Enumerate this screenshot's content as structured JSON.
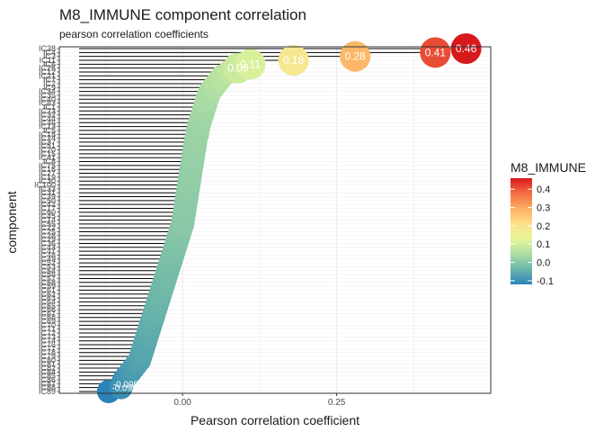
{
  "chart_data": {
    "type": "scatter",
    "title": "M8_IMMUNE component correlation",
    "subtitle": "pearson correlation coefficients",
    "xlabel": "Pearson correlation coefficient",
    "ylabel": "component",
    "xlim": [
      -0.2,
      0.5
    ],
    "x_ticks": [
      0.0,
      0.25
    ],
    "x_tick_labels": [
      "0.00",
      "0.25"
    ],
    "grid": true,
    "legend": {
      "title": "M8_IMMUNE",
      "position": "right",
      "ticks": [
        0.4,
        0.3,
        0.2,
        0.1,
        0.0,
        -0.1
      ],
      "tick_labels": [
        "0.4",
        "0.3",
        "0.2",
        "0.1",
        "0.0",
        "-0.1"
      ],
      "min": -0.12,
      "max": 0.46,
      "colors": [
        "#2b83ba",
        "#6bb5a9",
        "#abdda4",
        "#e6f598",
        "#fee08b",
        "#fdae61",
        "#f46d43",
        "#d7191c"
      ]
    },
    "categories_top_to_bottom": [
      "IC38",
      "IC4",
      "IC3",
      "IC11",
      "IC6",
      "IC26",
      "IC12",
      "IC21",
      "IC7",
      "IC2",
      "IC9",
      "IC34",
      "IC35",
      "IC40",
      "IC83",
      "IC1",
      "IC23",
      "IC32",
      "IC44",
      "IC46",
      "IC13",
      "IC5",
      "IC18",
      "IC24",
      "IC37",
      "IC51",
      "IC20",
      "IC15",
      "IC41",
      "IC8",
      "IC75",
      "IC16",
      "IC27",
      "IC19",
      "IC30",
      "IC100",
      "IC33",
      "IC31",
      "IC39",
      "IC50",
      "IC42",
      "IC17",
      "IC60",
      "IC45",
      "IC14",
      "IC55",
      "IC22",
      "IC25",
      "IC28",
      "IC29",
      "IC36",
      "IC43",
      "IC47",
      "IC48",
      "IC49",
      "IC52",
      "IC53",
      "IC54",
      "IC56",
      "IC57",
      "IC58",
      "IC59",
      "IC61",
      "IC62",
      "IC63",
      "IC64",
      "IC65",
      "IC66",
      "IC67",
      "IC68",
      "IC69",
      "IC70",
      "IC71",
      "IC72",
      "IC73",
      "IC74",
      "IC76",
      "IC77",
      "IC78",
      "IC79",
      "IC80",
      "IC81",
      "IC82",
      "IC84",
      "IC85",
      "IC86",
      "IC87",
      "IC88",
      "IC89"
    ],
    "visible_point_labels": [
      "0.46",
      "0.41",
      "0.28",
      "0.18",
      "0.11",
      "0.09",
      "-0.095",
      "-0.098"
    ],
    "series": [
      {
        "values": [
          0.46,
          0.41,
          0.28,
          0.18,
          0.11,
          0.09,
          0.075,
          0.065,
          0.06,
          0.055,
          0.05,
          0.045,
          0.042,
          0.04,
          0.038,
          0.036,
          0.034,
          0.032,
          0.03,
          0.028,
          0.026,
          0.025,
          0.024,
          0.022,
          0.021,
          0.02,
          0.019,
          0.018,
          0.017,
          0.016,
          0.015,
          0.014,
          0.013,
          0.012,
          0.011,
          0.01,
          0.009,
          0.008,
          0.007,
          0.006,
          0.005,
          0.004,
          0.003,
          0.002,
          0.001,
          0.0,
          -0.002,
          -0.004,
          -0.006,
          -0.008,
          -0.01,
          -0.012,
          -0.014,
          -0.016,
          -0.018,
          -0.02,
          -0.022,
          -0.024,
          -0.026,
          -0.028,
          -0.03,
          -0.032,
          -0.034,
          -0.036,
          -0.038,
          -0.04,
          -0.042,
          -0.044,
          -0.046,
          -0.048,
          -0.05,
          -0.052,
          -0.054,
          -0.056,
          -0.058,
          -0.06,
          -0.062,
          -0.064,
          -0.066,
          -0.068,
          -0.07,
          -0.075,
          -0.08,
          -0.085,
          -0.09,
          -0.095,
          -0.098,
          -0.1,
          -0.12
        ]
      }
    ]
  }
}
